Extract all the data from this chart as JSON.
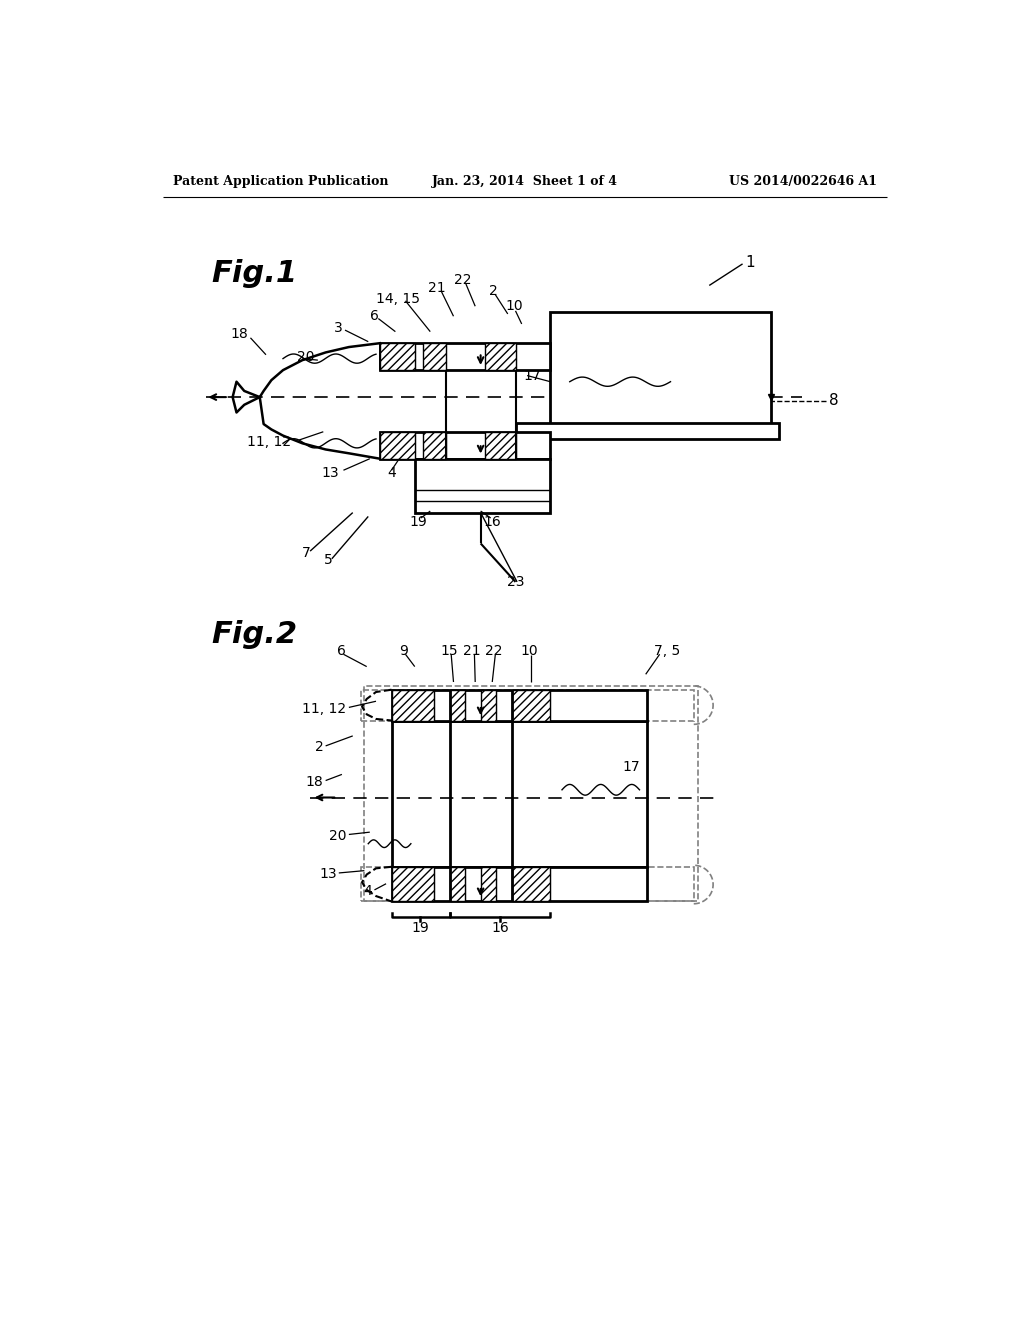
{
  "background_color": "#ffffff",
  "header_left": "Patent Application Publication",
  "header_center": "Jan. 23, 2014  Sheet 1 of 4",
  "header_right": "US 2014/0022646 A1",
  "fig1_label": "Fig.1",
  "fig2_label": "Fig.2",
  "line_color": "#000000"
}
